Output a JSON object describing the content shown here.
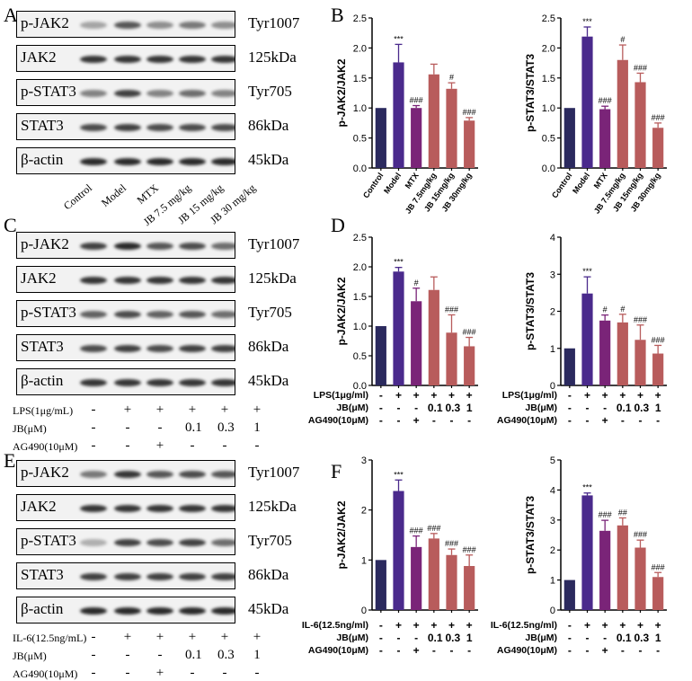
{
  "panels": {
    "A": {
      "letter": "A"
    },
    "B": {
      "letter": "B"
    },
    "C": {
      "letter": "C"
    },
    "D": {
      "letter": "D"
    },
    "E": {
      "letter": "E"
    },
    "F": {
      "letter": "F"
    }
  },
  "blots": {
    "A": {
      "rows": [
        {
          "label": "p-JAK2",
          "right": "Tyr1007"
        },
        {
          "label": "JAK2",
          "right": "125kDa"
        },
        {
          "label": "p-STAT3",
          "right": "Tyr705"
        },
        {
          "label": "STAT3",
          "right": "86kDa"
        },
        {
          "label": "β-actin",
          "right": "45kDa"
        }
      ],
      "lanes": [
        "Control",
        "Model",
        "MTX",
        "JB 7.5 mg/kg",
        "JB 15 mg/kg",
        "JB 30 mg/kg"
      ]
    },
    "C": {
      "rows": [
        {
          "label": "p-JAK2",
          "right": "Tyr1007"
        },
        {
          "label": "JAK2",
          "right": "125kDa"
        },
        {
          "label": "p-STAT3",
          "right": "Tyr705"
        },
        {
          "label": "STAT3",
          "right": "86kDa"
        },
        {
          "label": "β-actin",
          "right": "45kDa"
        }
      ],
      "conditions": [
        {
          "label": "LPS(1μg/mL)",
          "values": [
            "-",
            "+",
            "+",
            "+",
            "+",
            "+"
          ]
        },
        {
          "label": "JB(μM)",
          "values": [
            "-",
            "-",
            "-",
            "0.1",
            "0.3",
            "1"
          ]
        },
        {
          "label": "AG490(10μM)",
          "values": [
            "-",
            "-",
            "+",
            "-",
            "-",
            "-"
          ]
        }
      ]
    },
    "E": {
      "rows": [
        {
          "label": "p-JAK2",
          "right": "Tyr1007"
        },
        {
          "label": "JAK2",
          "right": "125kDa"
        },
        {
          "label": "p-STAT3",
          "right": "Tyr705"
        },
        {
          "label": "STAT3",
          "right": "86kDa"
        },
        {
          "label": "β-actin",
          "right": "45kDa"
        }
      ],
      "conditions": [
        {
          "label": "IL-6(12.5ng/mL)",
          "values": [
            "-",
            "+",
            "+",
            "+",
            "+",
            "+"
          ]
        },
        {
          "label": "JB(μM)",
          "values": [
            "-",
            "-",
            "-",
            "0.1",
            "0.3",
            "1"
          ]
        },
        {
          "label": "AG490(10μM)",
          "values": [
            "-",
            "-",
            "+",
            "-",
            "-",
            "-"
          ]
        }
      ]
    }
  },
  "colors": {
    "control": "#2b2a5e",
    "model": "#4a2a8c",
    "treat": "#7a2478",
    "jb": "#b85c5c"
  },
  "chart_data": [
    {
      "id": "B1",
      "type": "bar",
      "ylabel": "p-JAK2/JAK2",
      "ylim": [
        0,
        2.5
      ],
      "ticks": [
        0.0,
        0.5,
        1.0,
        1.5,
        2.0,
        2.5
      ],
      "categories": [
        "Control",
        "Model",
        "MTX",
        "JB 7.5mg/kg",
        "JB 15mg/kg",
        "JB 30mg/kg"
      ],
      "values": [
        1.0,
        1.76,
        1.0,
        1.56,
        1.32,
        0.79
      ],
      "errors": [
        0,
        0.3,
        0.04,
        0.17,
        0.1,
        0.05
      ],
      "annotations": [
        "",
        "***",
        "###",
        "",
        "#",
        "###"
      ],
      "colors": [
        "control",
        "model",
        "treat",
        "jb",
        "jb",
        "jb"
      ]
    },
    {
      "id": "B2",
      "type": "bar",
      "ylabel": "p-STAT3/STAT3",
      "ylim": [
        0,
        2.5
      ],
      "ticks": [
        0.0,
        0.5,
        1.0,
        1.5,
        2.0,
        2.5
      ],
      "categories": [
        "Control",
        "Model",
        "MTX",
        "JB 7.5mg/kg",
        "JB 15mg/kg",
        "JB 30mg/kg"
      ],
      "values": [
        1.0,
        2.19,
        0.98,
        1.8,
        1.43,
        0.67
      ],
      "errors": [
        0,
        0.16,
        0.05,
        0.25,
        0.15,
        0.08
      ],
      "annotations": [
        "",
        "***",
        "###",
        "#",
        "###",
        "###"
      ],
      "colors": [
        "control",
        "model",
        "treat",
        "jb",
        "jb",
        "jb"
      ]
    },
    {
      "id": "D1",
      "type": "bar",
      "ylabel": "p-JAK2/JAK2",
      "ylim": [
        0,
        2.5
      ],
      "ticks": [
        0.0,
        0.5,
        1.0,
        1.5,
        2.0,
        2.5
      ],
      "conditions": [
        {
          "label": "LPS(1μg/ml)",
          "values": [
            "-",
            "+",
            "+",
            "+",
            "+",
            "+"
          ]
        },
        {
          "label": "JB(μM)",
          "values": [
            "-",
            "-",
            "-",
            "0.1",
            "0.3",
            "1"
          ]
        },
        {
          "label": "AG490(10μM)",
          "values": [
            "-",
            "-",
            "+",
            "-",
            "-",
            "-"
          ]
        }
      ],
      "values": [
        1.0,
        1.92,
        1.42,
        1.61,
        0.89,
        0.66
      ],
      "errors": [
        0,
        0.07,
        0.22,
        0.22,
        0.3,
        0.15
      ],
      "annotations": [
        "",
        "***",
        "#",
        "",
        "###",
        "###"
      ],
      "colors": [
        "control",
        "model",
        "treat",
        "jb",
        "jb",
        "jb"
      ]
    },
    {
      "id": "D2",
      "type": "bar",
      "ylabel": "p-STAT3/STAT3",
      "ylim": [
        0,
        4
      ],
      "ticks": [
        0,
        1,
        2,
        3,
        4
      ],
      "conditions": [
        {
          "label": "LPS(1μg/ml)",
          "values": [
            "-",
            "+",
            "+",
            "+",
            "+",
            "+"
          ]
        },
        {
          "label": "JB(μM)",
          "values": [
            "-",
            "-",
            "-",
            "0.1",
            "0.3",
            "1"
          ]
        },
        {
          "label": "AG490(10μM)",
          "values": [
            "-",
            "-",
            "+",
            "-",
            "-",
            "-"
          ]
        }
      ],
      "values": [
        1.0,
        2.48,
        1.75,
        1.7,
        1.23,
        0.86
      ],
      "errors": [
        0,
        0.45,
        0.15,
        0.22,
        0.4,
        0.22
      ],
      "annotations": [
        "",
        "***",
        "#",
        "#",
        "###",
        "###"
      ],
      "colors": [
        "control",
        "model",
        "treat",
        "jb",
        "jb",
        "jb"
      ]
    },
    {
      "id": "F1",
      "type": "bar",
      "ylabel": "p-JAK2/JAK2",
      "ylim": [
        0,
        3
      ],
      "ticks": [
        0,
        1,
        2,
        3
      ],
      "conditions": [
        {
          "label": "IL-6(12.5ng/ml)",
          "values": [
            "-",
            "+",
            "+",
            "+",
            "+",
            "+"
          ]
        },
        {
          "label": "JB(μM)",
          "values": [
            "-",
            "-",
            "-",
            "0.1",
            "0.3",
            "1"
          ]
        },
        {
          "label": "AG490(10μM)",
          "values": [
            "-",
            "-",
            "+",
            "-",
            "-",
            "-"
          ]
        }
      ],
      "values": [
        1.0,
        2.38,
        1.26,
        1.43,
        1.1,
        0.88
      ],
      "errors": [
        0,
        0.22,
        0.22,
        0.1,
        0.12,
        0.22
      ],
      "annotations": [
        "",
        "***",
        "###",
        "###",
        "###",
        "###"
      ],
      "colors": [
        "control",
        "model",
        "treat",
        "jb",
        "jb",
        "jb"
      ]
    },
    {
      "id": "F2",
      "type": "bar",
      "ylabel": "p-STAT3/STAT3",
      "ylim": [
        0,
        5
      ],
      "ticks": [
        0,
        1,
        2,
        3,
        4,
        5
      ],
      "conditions": [
        {
          "label": "IL-6(12.5ng/ml)",
          "values": [
            "-",
            "+",
            "+",
            "+",
            "+",
            "+"
          ]
        },
        {
          "label": "JB(μM)",
          "values": [
            "-",
            "-",
            "-",
            "0.1",
            "0.3",
            "1"
          ]
        },
        {
          "label": "AG490(10μM)",
          "values": [
            "-",
            "-",
            "+",
            "-",
            "-",
            "-"
          ]
        }
      ],
      "values": [
        1.0,
        3.82,
        2.64,
        2.82,
        2.08,
        1.1
      ],
      "errors": [
        0,
        0.08,
        0.35,
        0.25,
        0.25,
        0.15
      ],
      "annotations": [
        "",
        "***",
        "###",
        "##",
        "###",
        "###"
      ],
      "colors": [
        "control",
        "model",
        "treat",
        "jb",
        "jb",
        "jb"
      ]
    }
  ]
}
